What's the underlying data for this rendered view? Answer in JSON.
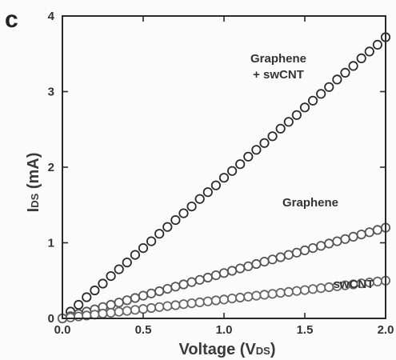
{
  "panel_label": "c",
  "chart_data": {
    "type": "scatter",
    "xlabel": {
      "main": "Voltage (V",
      "sub": "DS",
      "close": ")"
    },
    "ylabel": {
      "main": "I",
      "sub": "DS",
      "rest": " (mA)"
    },
    "xlim": [
      0.0,
      2.0
    ],
    "ylim": [
      0,
      4
    ],
    "x_ticks": [
      "0.0",
      "0.5",
      "1.0",
      "1.5",
      "2.0"
    ],
    "y_ticks": [
      "0",
      "1",
      "2",
      "3",
      "4"
    ],
    "grid": false,
    "legend": "none",
    "x_values": [
      0.0,
      0.05,
      0.1,
      0.15,
      0.2,
      0.25,
      0.3,
      0.35,
      0.4,
      0.45,
      0.5,
      0.55,
      0.6,
      0.65,
      0.7,
      0.75,
      0.8,
      0.85,
      0.9,
      0.95,
      1.0,
      1.05,
      1.1,
      1.15,
      1.2,
      1.25,
      1.3,
      1.35,
      1.4,
      1.45,
      1.5,
      1.55,
      1.6,
      1.65,
      1.7,
      1.75,
      1.8,
      1.85,
      1.9,
      1.95,
      2.0
    ],
    "series": [
      {
        "name": "Graphene + swCNT",
        "label_lines": [
          "Graphene",
          "+ swCNT"
        ],
        "color": "#2a2a2a",
        "values": [
          0.0,
          0.09,
          0.18,
          0.28,
          0.37,
          0.46,
          0.56,
          0.65,
          0.74,
          0.84,
          0.93,
          1.02,
          1.12,
          1.21,
          1.3,
          1.39,
          1.48,
          1.58,
          1.67,
          1.76,
          1.86,
          1.95,
          2.04,
          2.14,
          2.23,
          2.32,
          2.41,
          2.51,
          2.6,
          2.69,
          2.79,
          2.88,
          2.97,
          3.06,
          3.16,
          3.25,
          3.34,
          3.44,
          3.53,
          3.62,
          3.72
        ]
      },
      {
        "name": "Graphene",
        "label_lines": [
          "Graphene"
        ],
        "color": "#555555",
        "values": [
          0.0,
          0.03,
          0.06,
          0.09,
          0.12,
          0.15,
          0.18,
          0.21,
          0.24,
          0.27,
          0.3,
          0.33,
          0.36,
          0.39,
          0.42,
          0.45,
          0.48,
          0.51,
          0.54,
          0.57,
          0.6,
          0.63,
          0.66,
          0.69,
          0.72,
          0.75,
          0.78,
          0.81,
          0.84,
          0.87,
          0.9,
          0.93,
          0.96,
          0.99,
          1.02,
          1.05,
          1.08,
          1.11,
          1.14,
          1.17,
          1.2
        ]
      },
      {
        "name": "swCNT",
        "label_lines": [
          "swCNT"
        ],
        "color": "#666666",
        "values": [
          0.0,
          0.013,
          0.025,
          0.038,
          0.05,
          0.063,
          0.075,
          0.088,
          0.1,
          0.113,
          0.125,
          0.138,
          0.15,
          0.163,
          0.175,
          0.188,
          0.2,
          0.213,
          0.225,
          0.238,
          0.25,
          0.263,
          0.275,
          0.288,
          0.3,
          0.313,
          0.325,
          0.338,
          0.35,
          0.363,
          0.375,
          0.388,
          0.4,
          0.413,
          0.425,
          0.438,
          0.45,
          0.463,
          0.475,
          0.488,
          0.5
        ]
      }
    ]
  }
}
